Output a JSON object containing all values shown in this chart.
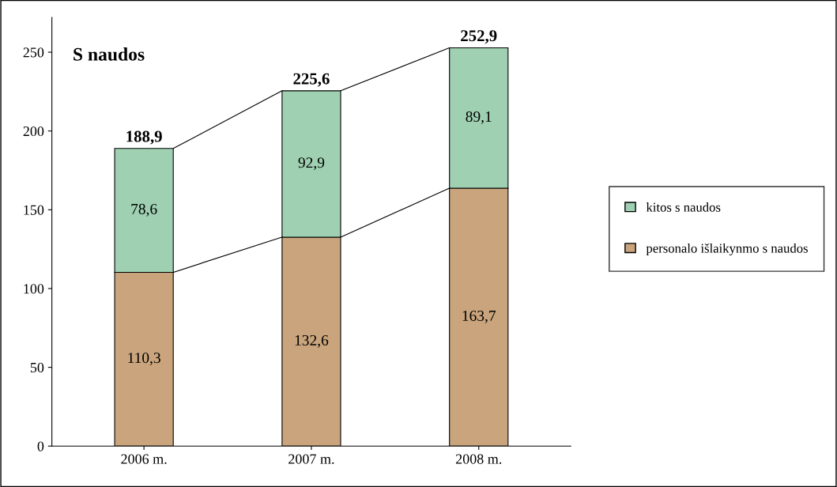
{
  "chart_data": {
    "type": "bar",
    "stacked": true,
    "title": "S naudos",
    "categories": [
      "2006 m.",
      "2007 m.",
      "2008 m."
    ],
    "series": [
      {
        "name": "personalo išlaikynmo s naudos",
        "color": "#c9a47c",
        "values": [
          110.3,
          132.6,
          163.7
        ],
        "value_labels": [
          "110,3",
          "132,6",
          "163,7"
        ]
      },
      {
        "name": "kitos s naudos",
        "color": "#9fd0b2",
        "values": [
          78.6,
          92.9,
          89.1
        ],
        "value_labels": [
          "78,6",
          "92,9",
          "89,1"
        ]
      }
    ],
    "totals": [
      "188,9",
      "225,6",
      "252,9"
    ],
    "ylim": [
      0,
      272
    ],
    "yticks": [
      0,
      50,
      100,
      150,
      200,
      250
    ],
    "grid": false,
    "legend": "right"
  }
}
